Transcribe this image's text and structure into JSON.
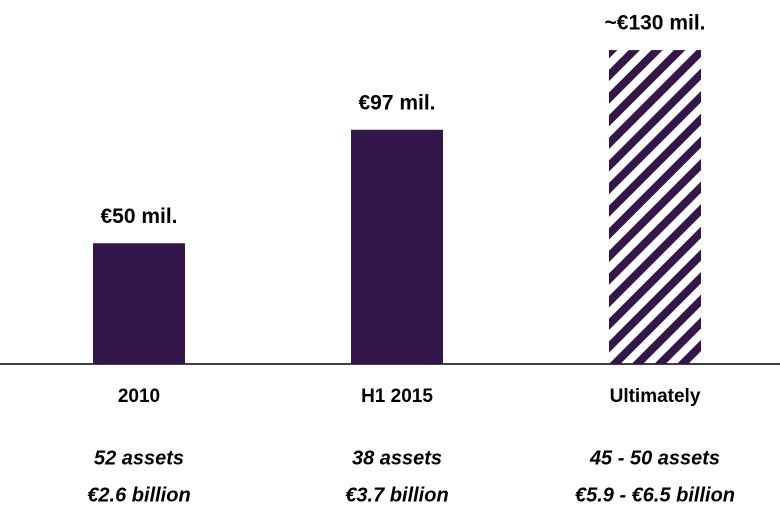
{
  "chart_data": {
    "type": "bar",
    "categories": [
      "2010",
      "H1 2015",
      "Ultimately"
    ],
    "values": [
      50,
      97,
      130
    ],
    "value_labels": [
      "€50 mil.",
      "€97 mil.",
      "~€130 mil."
    ],
    "hatched": [
      false,
      false,
      true
    ],
    "notes": [
      [
        "52 assets",
        "€2.6 billion"
      ],
      [
        "38 assets",
        "€3.7 billion"
      ],
      [
        "45 - 50 assets",
        "€5.9 - €6.5 billion"
      ]
    ],
    "color": "#33174a",
    "ylim": [
      0,
      135
    ]
  }
}
